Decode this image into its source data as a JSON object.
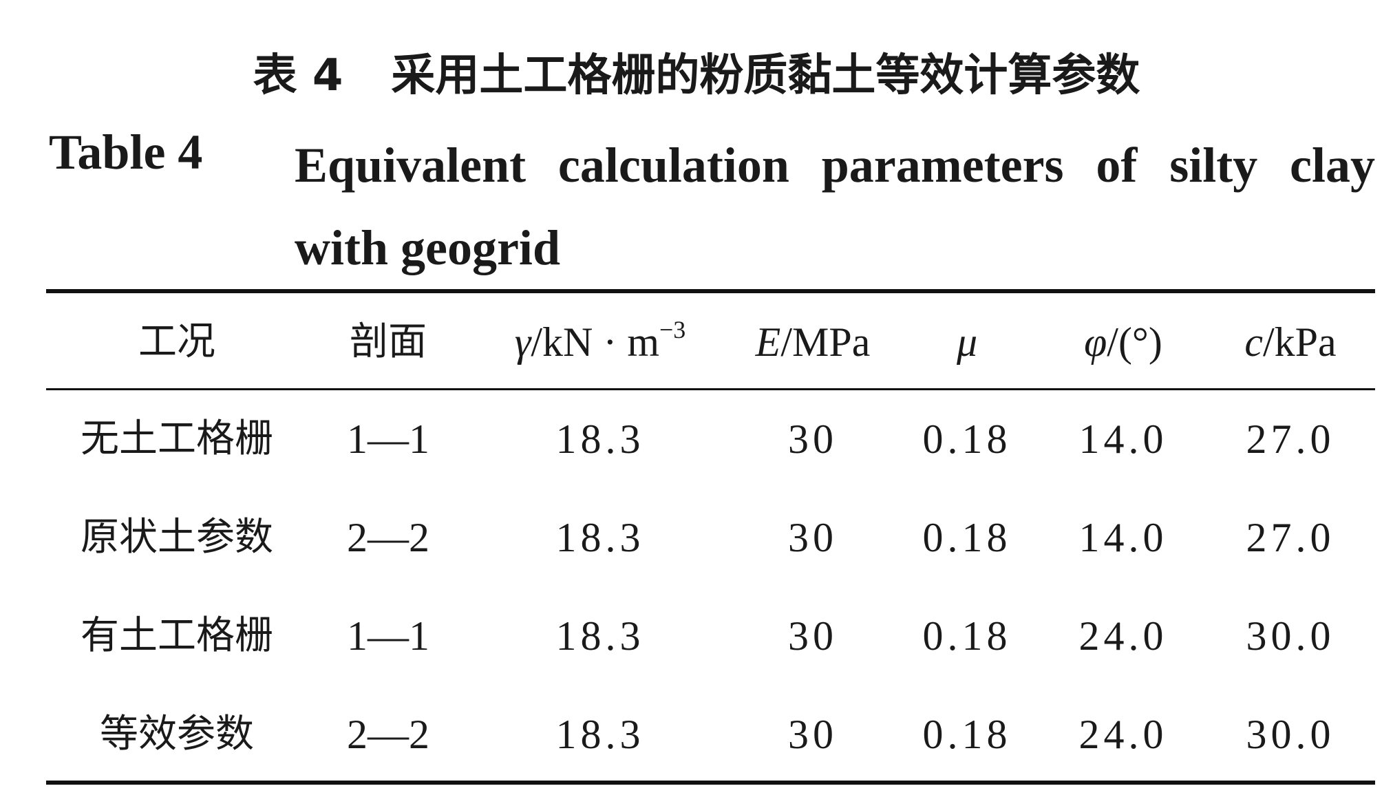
{
  "caption": {
    "label_zh": "表 4",
    "title_zh": "采用土工格栅的粉质黏土等效计算参数",
    "label_en": "Table 4",
    "title_en": "Equivalent calculation parameters of silty clay with geogrid"
  },
  "table": {
    "header": [
      {
        "text": "工况"
      },
      {
        "text": "剖面"
      },
      {
        "symbol": "γ",
        "unit": "/kN · m",
        "sup": "−3"
      },
      {
        "symbol": "E",
        "unit": "/MPa"
      },
      {
        "symbol": "μ"
      },
      {
        "symbol": "φ",
        "unit": "/(°)"
      },
      {
        "symbol": "c",
        "unit": "/kPa"
      }
    ],
    "rows": [
      [
        "无土工格栅",
        "1—1",
        "18.3",
        "30",
        "0.18",
        "14.0",
        "27.0"
      ],
      [
        "原状土参数",
        "2—2",
        "18.3",
        "30",
        "0.18",
        "14.0",
        "27.0"
      ],
      [
        "有土工格栅",
        "1—1",
        "18.3",
        "30",
        "0.18",
        "24.0",
        "30.0"
      ],
      [
        "等效参数",
        "2—2",
        "18.3",
        "30",
        "0.18",
        "24.0",
        "30.0"
      ]
    ]
  }
}
